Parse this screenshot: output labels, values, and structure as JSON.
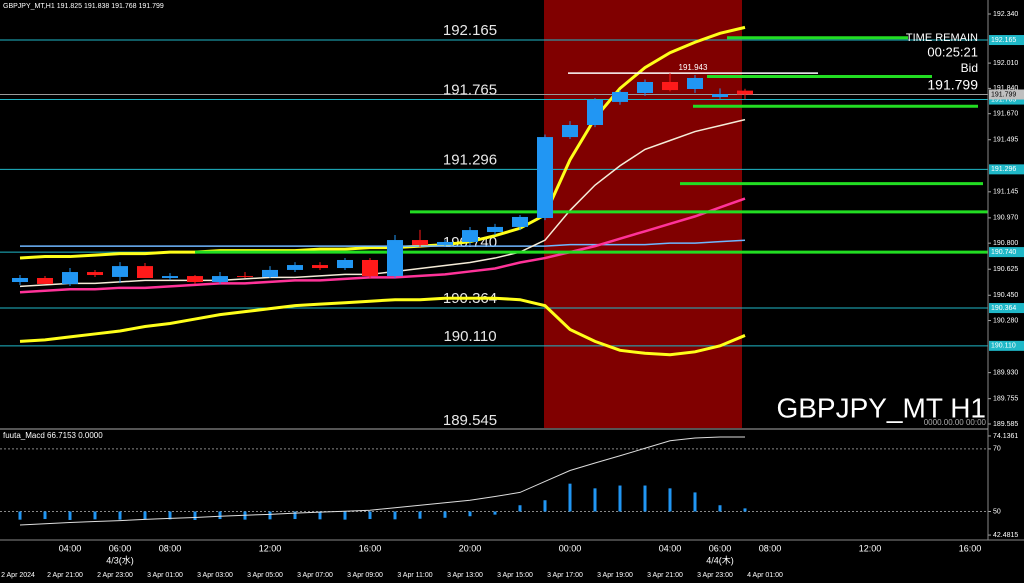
{
  "chart_data": {
    "type": "candlestick",
    "symbol": "GBPJPY_MT,H1",
    "watermark": "GBPJPY_MT H1",
    "timestamp": "0000.00.00 00:00",
    "info": {
      "time_remain_label": "TIME REMAIN",
      "time_remain": "00:25:21",
      "bid_label": "Bid"
    },
    "categories": [
      null,
      null,
      "04:00",
      null,
      "06:00",
      null,
      "08:00",
      null,
      null,
      null,
      "12:00",
      null,
      null,
      null,
      "16:00",
      null,
      null,
      null,
      "20:00",
      null,
      null,
      null,
      "00:00",
      null,
      null,
      null,
      "04:00",
      null,
      "06:00",
      null,
      "08:00",
      null,
      null,
      null,
      "12:00",
      null,
      null,
      null,
      "16:00"
    ],
    "date_labels": [
      null,
      null,
      null,
      null,
      "4/3(水)",
      null,
      null,
      null,
      null,
      null,
      null,
      null,
      null,
      null,
      null,
      null,
      null,
      null,
      null,
      null,
      null,
      null,
      null,
      null,
      null,
      null,
      null,
      null,
      "4/4(木)",
      null,
      null,
      null,
      null,
      null,
      null,
      null,
      null,
      null,
      null
    ],
    "server_time_labels": [
      "2 Apr 2024",
      null,
      "2 Apr 21:00",
      null,
      "2 Apr 23:00",
      null,
      "3 Apr 01:00",
      null,
      "3 Apr 03:00",
      null,
      "3 Apr 05:00",
      null,
      "3 Apr 07:00",
      null,
      "3 Apr 09:00",
      null,
      "3 Apr 11:00",
      null,
      "3 Apr 13:00",
      null,
      "3 Apr 15:00",
      null,
      "3 Apr 17:00",
      null,
      "3 Apr 19:00",
      null,
      "3 Apr 21:00",
      null,
      "3 Apr 23:00",
      null,
      "4 Apr 01:00",
      null,
      null,
      null,
      null,
      null,
      null,
      null,
      null
    ],
    "open": [
      190.539,
      190.566,
      190.526,
      190.606,
      190.573,
      190.646,
      190.566,
      190.579,
      190.539,
      190.579,
      190.573,
      190.62,
      190.653,
      190.633,
      190.687,
      190.579,
      190.821,
      190.788,
      190.808,
      190.875,
      190.909,
      190.969,
      191.513,
      191.594,
      191.749,
      191.809,
      191.883,
      191.836,
      191.782,
      191.825,
      null,
      null,
      null,
      null,
      null,
      null,
      null,
      null,
      null
    ],
    "high": [
      190.586,
      190.579,
      190.633,
      190.62,
      190.673,
      190.667,
      190.599,
      190.586,
      190.606,
      190.606,
      190.646,
      190.673,
      190.673,
      190.7,
      190.7,
      190.855,
      190.889,
      190.821,
      190.909,
      190.93,
      190.989,
      191.53,
      191.62,
      191.775,
      191.83,
      191.9,
      191.943,
      191.93,
      191.84,
      191.838,
      null,
      null,
      null,
      null,
      null,
      null,
      null,
      null,
      null
    ],
    "low": [
      190.519,
      190.526,
      190.512,
      190.573,
      190.532,
      190.566,
      190.552,
      190.526,
      190.526,
      190.566,
      190.566,
      190.606,
      190.62,
      190.62,
      190.566,
      190.566,
      190.774,
      190.774,
      190.788,
      190.855,
      190.888,
      190.955,
      191.5,
      191.58,
      191.73,
      191.79,
      191.82,
      191.81,
      191.77,
      191.768,
      null,
      null,
      null,
      null,
      null,
      null,
      null,
      null,
      null
    ],
    "close": [
      190.566,
      190.526,
      190.606,
      190.586,
      190.646,
      190.566,
      190.579,
      190.539,
      190.579,
      190.573,
      190.62,
      190.653,
      190.633,
      190.687,
      190.579,
      190.821,
      190.788,
      190.808,
      190.888,
      190.909,
      190.976,
      191.513,
      191.594,
      191.762,
      191.816,
      191.883,
      191.829,
      191.91,
      191.802,
      191.799,
      null,
      null,
      null,
      null,
      null,
      null,
      null,
      null,
      null
    ],
    "up_color": "#2196f3",
    "down_color": "#ff1a1a",
    "overlays": [
      {
        "color": "#ffff1a",
        "width": 3,
        "values": [
          190.7,
          190.71,
          190.71,
          190.72,
          190.73,
          190.73,
          190.74,
          190.74,
          190.75,
          190.75,
          190.75,
          190.75,
          190.76,
          190.76,
          190.77,
          190.77,
          190.78,
          190.79,
          190.81,
          190.85,
          190.9,
          190.99,
          191.36,
          191.64,
          191.84,
          191.98,
          192.08,
          192.15,
          192.21,
          192.25,
          null,
          null,
          null,
          null,
          null,
          null,
          null,
          null,
          null
        ]
      },
      {
        "color": "#ffff1a",
        "width": 3,
        "values": [
          190.14,
          190.15,
          190.17,
          190.19,
          190.21,
          190.24,
          190.26,
          190.29,
          190.32,
          190.34,
          190.36,
          190.38,
          190.39,
          190.4,
          190.41,
          190.42,
          190.42,
          190.43,
          190.43,
          190.43,
          190.42,
          190.38,
          190.22,
          190.14,
          190.08,
          190.06,
          190.05,
          190.07,
          190.11,
          190.18,
          null,
          null,
          null,
          null,
          null,
          null,
          null,
          null,
          null
        ]
      },
      {
        "color": "#6fb7ff",
        "width": 1.5,
        "values": [
          190.78,
          190.78,
          190.78,
          190.78,
          190.78,
          190.78,
          190.78,
          190.78,
          190.78,
          190.78,
          190.78,
          190.78,
          190.78,
          190.78,
          190.78,
          190.78,
          190.78,
          190.78,
          190.78,
          190.78,
          190.78,
          190.78,
          190.79,
          190.79,
          190.79,
          190.79,
          190.8,
          190.8,
          190.81,
          190.82,
          null,
          null,
          null,
          null,
          null,
          null,
          null,
          null,
          null
        ]
      },
      {
        "color": "#ff3399",
        "width": 2.5,
        "values": [
          190.47,
          190.48,
          190.49,
          190.49,
          190.5,
          190.5,
          190.51,
          190.52,
          190.53,
          190.53,
          190.54,
          190.55,
          190.55,
          190.56,
          190.57,
          190.57,
          190.58,
          190.59,
          190.61,
          190.63,
          190.67,
          190.7,
          190.74,
          190.78,
          190.83,
          190.88,
          190.93,
          190.98,
          191.04,
          191.1,
          null,
          null,
          null,
          null,
          null,
          null,
          null,
          null,
          null
        ]
      },
      {
        "color": "#f5ecd8",
        "width": 1.5,
        "values": [
          190.51,
          190.52,
          190.53,
          190.53,
          190.54,
          190.55,
          190.55,
          190.55,
          190.55,
          190.56,
          190.57,
          190.57,
          190.58,
          190.59,
          190.59,
          190.61,
          190.63,
          190.65,
          190.67,
          190.7,
          190.74,
          190.82,
          191.02,
          191.19,
          191.32,
          191.43,
          191.49,
          191.55,
          191.59,
          191.63,
          null,
          null,
          null,
          null,
          null,
          null,
          null,
          null,
          null
        ]
      }
    ],
    "ylim": [
      189.558,
      192.434
    ],
    "yticks": [
      {
        "value": 192.34,
        "label": "192.340"
      },
      {
        "value": 192.01,
        "label": "192.010"
      },
      {
        "value": 191.84,
        "label": "191.840"
      },
      {
        "value": 191.67,
        "label": "191.670"
      },
      191.495,
      191.145,
      {
        "value": 190.97,
        "label": "190.970"
      },
      {
        "value": 190.8,
        "label": "190.800"
      },
      190.625,
      {
        "value": 190.45,
        "label": "190.450"
      },
      {
        "value": 190.28,
        "label": "190.280"
      },
      {
        "value": 189.93,
        "label": "189.930"
      },
      189.755,
      189.585
    ],
    "levels": [
      192.165,
      191.765,
      191.296,
      {
        "value": 190.74,
        "label": "190.740"
      },
      190.364,
      {
        "value": 190.11,
        "label": "190.110"
      },
      189.545
    ],
    "level_color": "#1fb8c8",
    "green_lines": [
      192.18,
      191.92,
      191.72,
      191.2,
      191.01,
      190.74
    ],
    "green_color": "#22dd22",
    "session_high": 191.943,
    "indicator": {
      "name": "fuuta_Macd",
      "value": 66.7153,
      "value2": {
        "value": 0,
        "label": "0.0000"
      },
      "ylim": [
        40.9,
        75.72
      ],
      "yticks": [
        74.1361,
        70,
        50,
        42.4815
      ],
      "levels": [
        70,
        50
      ],
      "bar_color": "#2196f3",
      "histogram": [
        47.4,
        47.6,
        47.3,
        47.5,
        47.4,
        47.6,
        47.5,
        47.3,
        47.6,
        47.4,
        47.5,
        47.6,
        47.5,
        47.4,
        47.6,
        47.5,
        47.7,
        48.0,
        48.5,
        49.0,
        52.0,
        53.6,
        58.9,
        57.4,
        58.3,
        58.3,
        57.4,
        56.1,
        52.0,
        51.0,
        null,
        null,
        null,
        null,
        null,
        null,
        null,
        null,
        null
      ],
      "line": [
        45.7,
        46.1,
        46.5,
        46.8,
        47.1,
        47.5,
        47.8,
        48.1,
        48.5,
        48.8,
        49.1,
        49.5,
        49.8,
        50.1,
        50.4,
        51.2,
        52.0,
        52.8,
        53.6,
        54.8,
        56.1,
        59.6,
        63.1,
        65.5,
        67.8,
        70.2,
        72.6,
        73.5,
        73.8,
        73.8,
        null,
        null,
        null,
        null,
        null,
        null,
        null,
        null,
        null
      ]
    }
  }
}
